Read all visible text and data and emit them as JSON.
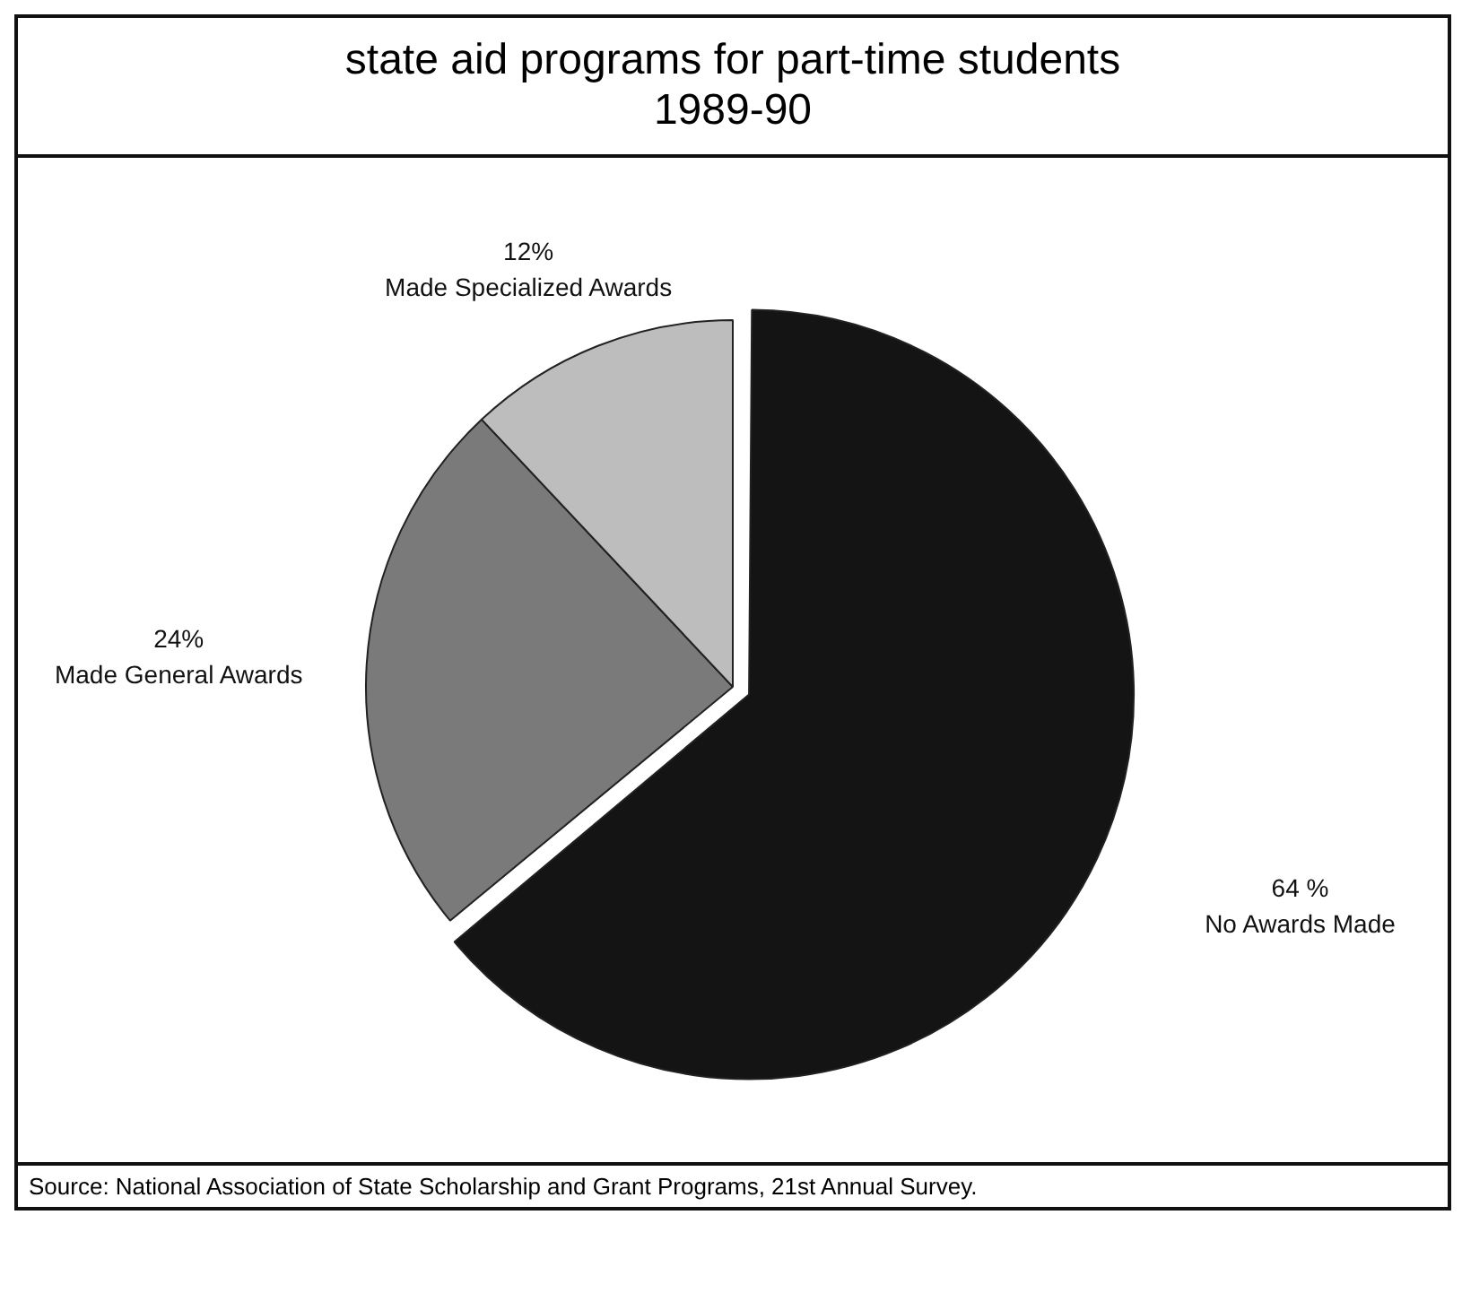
{
  "chart_data": {
    "type": "pie",
    "title": "state aid programs for part-time students",
    "subtitle": "1989-90",
    "categories": [
      "No Awards Made",
      "Made General Awards",
      "Made Specialized Awards"
    ],
    "values": [
      64,
      24,
      12
    ],
    "colors": [
      "#141414",
      "#7a7a7a",
      "#bdbdbd"
    ],
    "value_labels": [
      "64 %",
      "24%",
      "12%"
    ],
    "legend": false,
    "annotations": [
      "Source:  National Association of State Scholarship and Grant Programs, 21st Annual Survey."
    ]
  }
}
